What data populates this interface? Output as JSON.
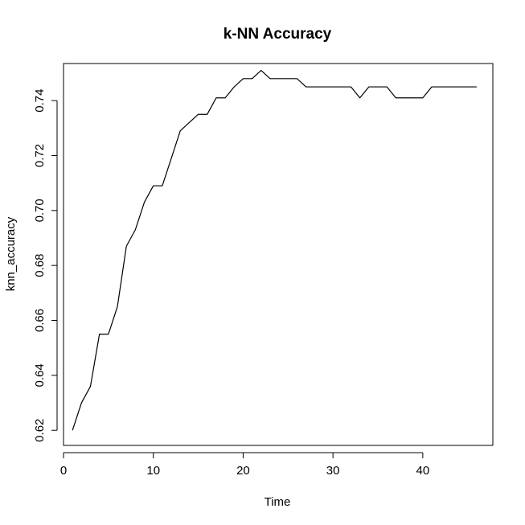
{
  "chart_data": {
    "type": "line",
    "title": "k-NN Accuracy",
    "xlabel": "Time",
    "ylabel": "knn_accuracy",
    "xlim": [
      0,
      47.8
    ],
    "ylim": [
      0.6145,
      0.7535
    ],
    "xticks": [
      0,
      10,
      20,
      30,
      40
    ],
    "yticks": [
      0.62,
      0.64,
      0.66,
      0.68,
      0.7,
      0.72,
      0.74
    ],
    "ytick_labels": [
      "0.62",
      "0.64",
      "0.66",
      "0.68",
      "0.70",
      "0.72",
      "0.74"
    ],
    "grid": false,
    "legend": "none",
    "series": [
      {
        "x": [
          1,
          2,
          3,
          4,
          5,
          6,
          7,
          8,
          9,
          10,
          11,
          12,
          13,
          14,
          15,
          16,
          17,
          18,
          19,
          20,
          21,
          22,
          23,
          24,
          25,
          26,
          27,
          28,
          29,
          30,
          31,
          32,
          33,
          34,
          35,
          36,
          37,
          38,
          39,
          40,
          41,
          42,
          43,
          44,
          45,
          46
        ],
        "values": [
          0.62,
          0.63,
          0.636,
          0.655,
          0.655,
          0.665,
          0.687,
          0.693,
          0.703,
          0.709,
          0.709,
          0.719,
          0.729,
          0.732,
          0.735,
          0.735,
          0.741,
          0.741,
          0.745,
          0.748,
          0.748,
          0.751,
          0.748,
          0.748,
          0.748,
          0.748,
          0.745,
          0.745,
          0.745,
          0.745,
          0.745,
          0.745,
          0.741,
          0.745,
          0.745,
          0.745,
          0.741,
          0.741,
          0.741,
          0.741,
          0.745,
          0.745,
          0.745,
          0.745,
          0.745,
          0.745
        ],
        "color": "#000000"
      }
    ]
  }
}
